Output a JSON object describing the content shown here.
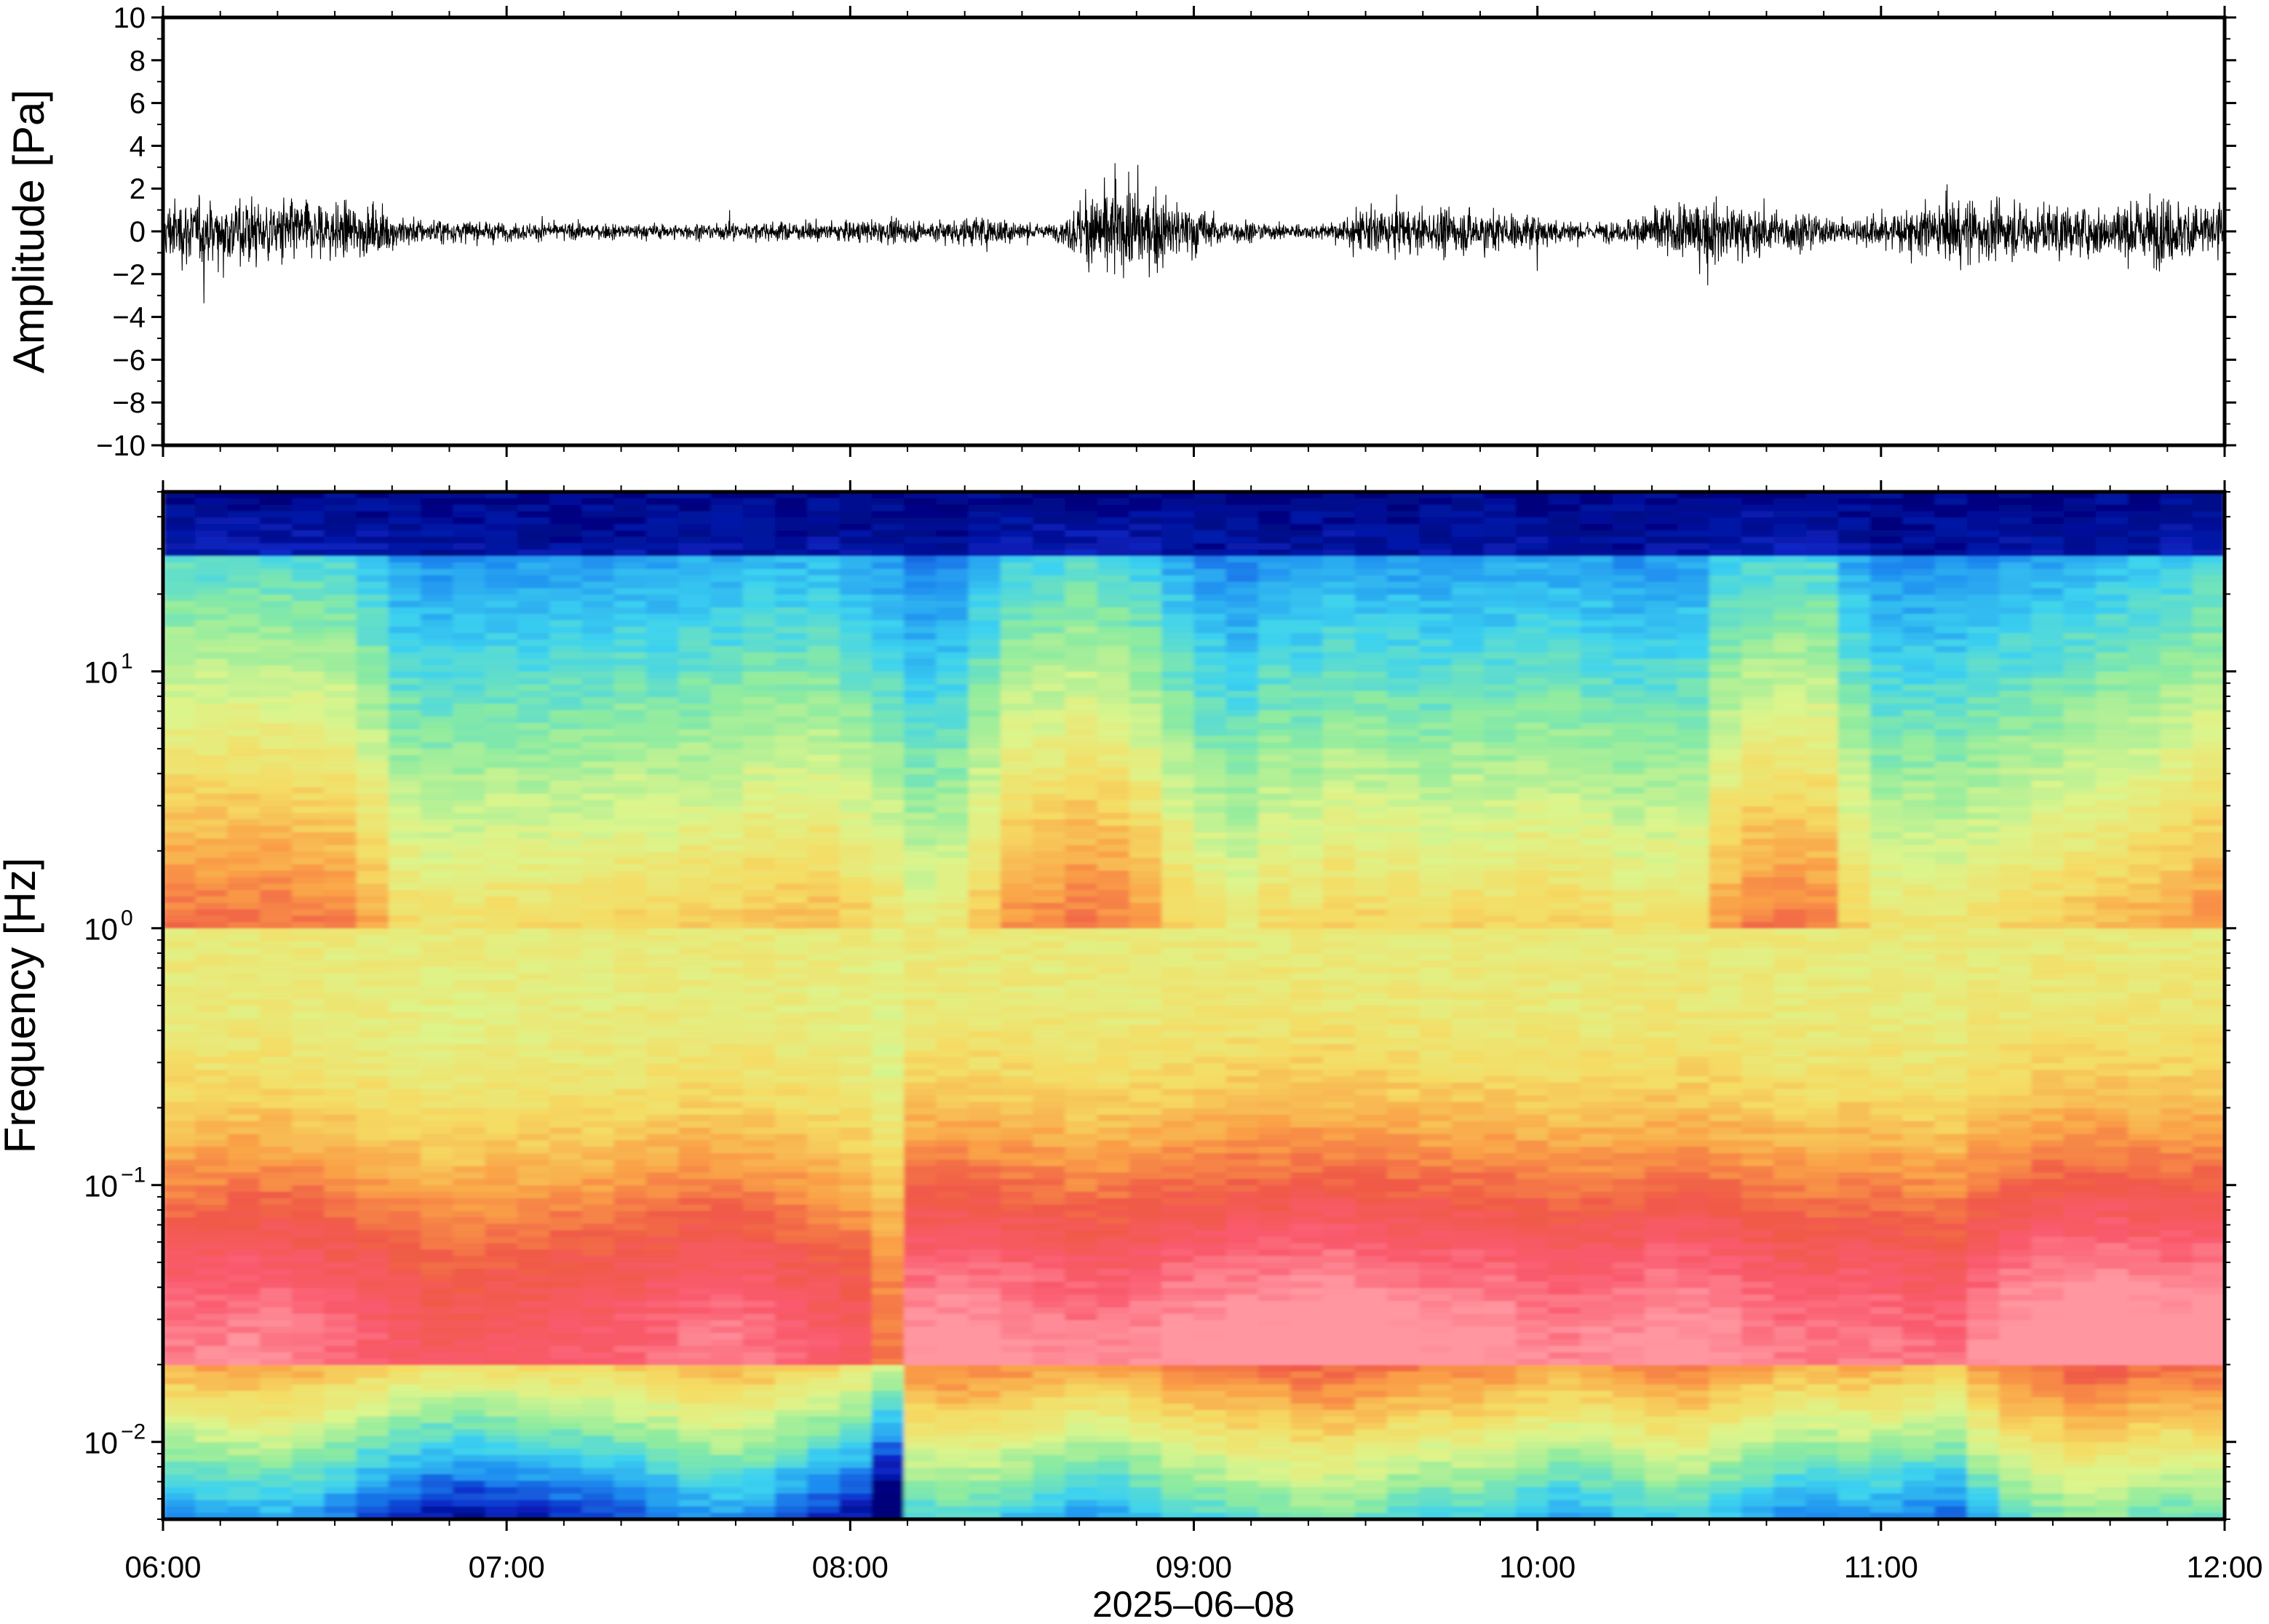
{
  "chart_data": [
    {
      "type": "line",
      "ylabel": "Amplitude [Pa]",
      "ylim": [
        -10,
        10
      ],
      "yticks": [
        10,
        8,
        6,
        4,
        2,
        0,
        -2,
        -4,
        -6,
        -8,
        -10
      ],
      "ytick_labels": [
        "10",
        "8",
        "6",
        "4",
        "2",
        "0",
        "−2",
        "−4",
        "−6",
        "−8",
        "−10"
      ],
      "x_range": [
        "2025-06-08 06:00",
        "2025-06-08 12:00"
      ],
      "grid": false,
      "series": [
        {
          "values": [
            1.2,
            1.3,
            1.1,
            0.9,
            0.5,
            0.35,
            0.3,
            0.3,
            0.35,
            0.4,
            0.45,
            0.6,
            0.55,
            0.4,
            0.25,
            0.3,
            1.5,
            1.6,
            1.2,
            0.5,
            0.3,
            0.3,
            0.9,
            0.8,
            0.85,
            0.6,
            0.35,
            0.4,
            1.0,
            1.2,
            0.8,
            0.45,
            1.3,
            1.0,
            0.9,
            1.3,
            1.1
          ]
        }
      ],
      "x_hours": [
        6.0,
        6.25,
        6.5,
        6.6,
        6.75,
        7.0,
        7.25,
        7.5,
        7.75,
        8.0,
        8.25,
        8.4,
        8.45,
        8.5,
        8.55,
        8.6,
        8.7,
        8.8,
        8.95,
        9.1,
        9.25,
        9.4,
        9.5,
        9.7,
        9.85,
        10.0,
        10.15,
        10.25,
        10.35,
        10.55,
        10.7,
        10.9,
        11.25,
        11.4,
        11.6,
        11.8,
        12.0
      ]
    },
    {
      "type": "heatmap",
      "ylabel": "Frequency [Hz]",
      "xlabel": "2025–06–08",
      "x_categories": [
        "06:00",
        "07:00",
        "08:00",
        "09:00",
        "10:00",
        "11:00",
        "12:00"
      ],
      "yscale": "log",
      "ylim": [
        0.005,
        50
      ],
      "yticks": [
        10,
        1,
        0.1,
        0.01
      ],
      "ytick_base": "10",
      "ytick_exponents": [
        "1",
        "0",
        "−1",
        "−2"
      ],
      "colormap": [
        "#00007a",
        "#0a28c8",
        "#1e8cf0",
        "#3cd2f0",
        "#8ceba0",
        "#dcf58c",
        "#f5dc64",
        "#faa046",
        "#f05a46",
        "#fa5a6e",
        "#ff96a0"
      ],
      "upper_band_level": [
        0.62,
        0.6,
        0.6,
        0.62,
        0.6,
        0.58,
        0.55,
        0.3,
        0.28,
        0.25,
        0.3,
        0.28,
        0.3,
        0.28,
        0.35,
        0.3,
        0.35,
        0.33,
        0.4,
        0.38,
        0.42,
        0.36,
        0.3,
        0.18,
        0.2,
        0.35,
        0.52,
        0.55,
        0.6,
        0.58,
        0.5,
        0.35,
        0.25,
        0.2,
        0.3,
        0.28,
        0.35,
        0.32,
        0.3,
        0.28,
        0.32,
        0.3,
        0.35,
        0.32,
        0.3,
        0.25,
        0.28,
        0.3,
        0.55,
        0.58,
        0.6,
        0.55,
        0.25,
        0.22,
        0.25,
        0.22,
        0.3,
        0.32,
        0.35,
        0.4,
        0.42,
        0.45,
        0.5,
        0.55
      ],
      "low_band_level": [
        0.78,
        0.8,
        0.8,
        0.82,
        0.8,
        0.78,
        0.75,
        0.72,
        0.7,
        0.68,
        0.7,
        0.7,
        0.72,
        0.72,
        0.74,
        0.75,
        0.78,
        0.8,
        0.78,
        0.75,
        0.72,
        0.72,
        0.55,
        0.85,
        0.86,
        0.86,
        0.84,
        0.82,
        0.8,
        0.8,
        0.82,
        0.85,
        0.86,
        0.88,
        0.88,
        0.9,
        0.9,
        0.88,
        0.86,
        0.85,
        0.86,
        0.84,
        0.82,
        0.8,
        0.82,
        0.84,
        0.86,
        0.85,
        0.82,
        0.8,
        0.78,
        0.78,
        0.8,
        0.78,
        0.76,
        0.76,
        0.86,
        0.88,
        0.9,
        0.92,
        0.9,
        0.88,
        0.88,
        0.9
      ]
    }
  ]
}
